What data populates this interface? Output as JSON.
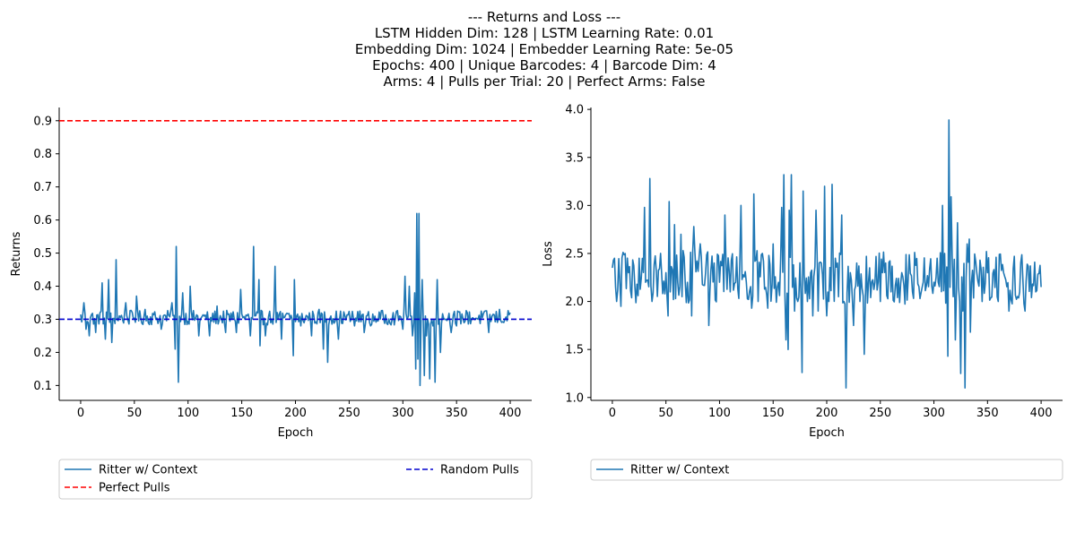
{
  "suptitle": [
    "--- Returns and Loss ---",
    "LSTM Hidden Dim: 128 | LSTM Learning Rate: 0.01",
    "Embedding Dim: 1024 | Embedder Learning Rate: 5e-05",
    "Epochs: 400 | Unique Barcodes: 4 | Barcode Dim: 4",
    "Arms: 4 | Pulls per Trial: 20 | Perfect Arms: False"
  ],
  "colors": {
    "series": "#1f77b4",
    "perfect": "#ff0000",
    "random": "#0000cd"
  },
  "chart_data": [
    {
      "type": "line",
      "title": "",
      "xlabel": "Epoch",
      "ylabel": "Returns",
      "xlim": [
        -20,
        420
      ],
      "ylim": [
        0.055,
        0.94
      ],
      "xticks": [
        0,
        50,
        100,
        150,
        200,
        250,
        300,
        350,
        400
      ],
      "yticks": [
        0.1,
        0.2,
        0.3,
        0.4,
        0.5,
        0.6,
        0.7,
        0.8,
        0.9
      ],
      "ytick_labels": [
        "0.1",
        "0.2",
        "0.3",
        "0.4",
        "0.5",
        "0.6",
        "0.7",
        "0.8",
        "0.9"
      ],
      "legend_position": "below",
      "series": [
        {
          "name": "Ritter w/ Context",
          "style": "solid",
          "color": "#1f77b4",
          "base": 0.305,
          "noise": 0.022,
          "spikes": [
            [
              3,
              0.35
            ],
            [
              5,
              0.27
            ],
            [
              8,
              0.25
            ],
            [
              14,
              0.26
            ],
            [
              20,
              0.41
            ],
            [
              23,
              0.24
            ],
            [
              26,
              0.42
            ],
            [
              29,
              0.23
            ],
            [
              33,
              0.48
            ],
            [
              42,
              0.35
            ],
            [
              52,
              0.37
            ],
            [
              60,
              0.33
            ],
            [
              75,
              0.27
            ],
            [
              85,
              0.35
            ],
            [
              88,
              0.21
            ],
            [
              89,
              0.52
            ],
            [
              91,
              0.11
            ],
            [
              95,
              0.38
            ],
            [
              102,
              0.4
            ],
            [
              110,
              0.25
            ],
            [
              120,
              0.25
            ],
            [
              127,
              0.34
            ],
            [
              135,
              0.26
            ],
            [
              145,
              0.26
            ],
            [
              149,
              0.39
            ],
            [
              158,
              0.25
            ],
            [
              161,
              0.52
            ],
            [
              166,
              0.42
            ],
            [
              167,
              0.22
            ],
            [
              172,
              0.25
            ],
            [
              181,
              0.46
            ],
            [
              187,
              0.24
            ],
            [
              198,
              0.19
            ],
            [
              199,
              0.42
            ],
            [
              205,
              0.28
            ],
            [
              215,
              0.25
            ],
            [
              222,
              0.33
            ],
            [
              226,
              0.21
            ],
            [
              230,
              0.17
            ],
            [
              233,
              0.31
            ],
            [
              240,
              0.24
            ],
            [
              255,
              0.28
            ],
            [
              264,
              0.26
            ],
            [
              270,
              0.28
            ],
            [
              290,
              0.3
            ],
            [
              300,
              0.27
            ],
            [
              302,
              0.43
            ],
            [
              306,
              0.4
            ],
            [
              309,
              0.25
            ],
            [
              311,
              0.38
            ],
            [
              312,
              0.15
            ],
            [
              313,
              0.62
            ],
            [
              314,
              0.18
            ],
            [
              315,
              0.62
            ],
            [
              316,
              0.1
            ],
            [
              318,
              0.42
            ],
            [
              320,
              0.13
            ],
            [
              322,
              0.25
            ],
            [
              325,
              0.12
            ],
            [
              328,
              0.28
            ],
            [
              330,
              0.11
            ],
            [
              332,
              0.42
            ],
            [
              335,
              0.2
            ],
            [
              340,
              0.3
            ],
            [
              345,
              0.26
            ],
            [
              350,
              0.28
            ],
            [
              360,
              0.32
            ],
            [
              370,
              0.3
            ],
            [
              380,
              0.26
            ],
            [
              390,
              0.33
            ],
            [
              395,
              0.3
            ],
            [
              400,
              0.32
            ]
          ]
        },
        {
          "name": "Perfect Pulls",
          "style": "dashed",
          "color": "#ff0000",
          "value": 0.9
        },
        {
          "name": "Random Pulls",
          "style": "dashed",
          "color": "#0000cd",
          "value": 0.3
        }
      ],
      "legend": [
        "Ritter w/ Context",
        "Perfect Pulls",
        "Random Pulls"
      ]
    },
    {
      "type": "line",
      "title": "",
      "xlabel": "Epoch",
      "ylabel": "Loss",
      "xlim": [
        -20,
        420
      ],
      "ylim": [
        0.97,
        4.02
      ],
      "xticks": [
        0,
        50,
        100,
        150,
        200,
        250,
        300,
        350,
        400
      ],
      "yticks": [
        1.0,
        1.5,
        2.0,
        2.5,
        3.0,
        3.5,
        4.0
      ],
      "ytick_labels": [
        "1.0",
        "1.5",
        "2.0",
        "2.5",
        "3.0",
        "3.5",
        "4.0"
      ],
      "legend_position": "below",
      "series": [
        {
          "name": "Ritter w/ Context",
          "style": "solid",
          "color": "#1f77b4",
          "base": 2.25,
          "noise": 0.28,
          "spikes": [
            [
              0,
              2.35
            ],
            [
              2,
              2.45
            ],
            [
              4,
              2.0
            ],
            [
              8,
              1.95
            ],
            [
              15,
              2.3
            ],
            [
              25,
              2.45
            ],
            [
              30,
              2.98
            ],
            [
              35,
              3.28
            ],
            [
              37,
              2.0
            ],
            [
              45,
              2.5
            ],
            [
              52,
              1.85
            ],
            [
              53,
              3.04
            ],
            [
              58,
              2.8
            ],
            [
              64,
              2.7
            ],
            [
              70,
              2.2
            ],
            [
              74,
              1.85
            ],
            [
              76,
              2.78
            ],
            [
              82,
              2.6
            ],
            [
              87,
              2.3
            ],
            [
              90,
              1.75
            ],
            [
              95,
              2.4
            ],
            [
              100,
              2.2
            ],
            [
              105,
              2.9
            ],
            [
              110,
              2.1
            ],
            [
              115,
              2.2
            ],
            [
              120,
              3.0
            ],
            [
              125,
              2.2
            ],
            [
              130,
              1.93
            ],
            [
              132,
              3.12
            ],
            [
              136,
              2.0
            ],
            [
              140,
              2.5
            ],
            [
              145,
              1.93
            ],
            [
              150,
              2.6
            ],
            [
              155,
              2.2
            ],
            [
              158,
              2.98
            ],
            [
              160,
              3.32
            ],
            [
              162,
              1.6
            ],
            [
              164,
              1.5
            ],
            [
              165,
              2.95
            ],
            [
              167,
              3.32
            ],
            [
              170,
              1.9
            ],
            [
              173,
              2.0
            ],
            [
              177,
              1.26
            ],
            [
              178,
              3.15
            ],
            [
              182,
              2.0
            ],
            [
              185,
              2.3
            ],
            [
              187,
              1.85
            ],
            [
              190,
              2.95
            ],
            [
              192,
              1.9
            ],
            [
              195,
              2.4
            ],
            [
              198,
              3.2
            ],
            [
              200,
              1.85
            ],
            [
              202,
              2.0
            ],
            [
              205,
              3.22
            ],
            [
              210,
              2.4
            ],
            [
              214,
              2.9
            ],
            [
              216,
              2.0
            ],
            [
              218,
              1.1
            ],
            [
              222,
              2.3
            ],
            [
              225,
              1.75
            ],
            [
              228,
              2.4
            ],
            [
              231,
              2.0
            ],
            [
              235,
              1.45
            ],
            [
              240,
              2.35
            ],
            [
              245,
              2.2
            ],
            [
              250,
              2.0
            ],
            [
              255,
              2.4
            ],
            [
              260,
              2.1
            ],
            [
              270,
              2.3
            ],
            [
              280,
              2.1
            ],
            [
              290,
              2.2
            ],
            [
              300,
              2.2
            ],
            [
              303,
              2.45
            ],
            [
              308,
              3.0
            ],
            [
              310,
              2.5
            ],
            [
              313,
              1.43
            ],
            [
              314,
              3.89
            ],
            [
              316,
              3.09
            ],
            [
              318,
              2.05
            ],
            [
              320,
              1.6
            ],
            [
              322,
              2.82
            ],
            [
              325,
              1.25
            ],
            [
              327,
              1.9
            ],
            [
              329,
              1.1
            ],
            [
              331,
              2.6
            ],
            [
              333,
              2.65
            ],
            [
              334,
              1.68
            ],
            [
              340,
              2.3
            ],
            [
              345,
              2.0
            ],
            [
              350,
              2.3
            ],
            [
              360,
              2.0
            ],
            [
              365,
              2.3
            ],
            [
              370,
              1.9
            ],
            [
              375,
              2.47
            ],
            [
              380,
              2.1
            ],
            [
              385,
              1.9
            ],
            [
              390,
              2.37
            ],
            [
              395,
              2.1
            ],
            [
              400,
              2.15
            ]
          ]
        }
      ],
      "legend": [
        "Ritter w/ Context"
      ]
    }
  ]
}
